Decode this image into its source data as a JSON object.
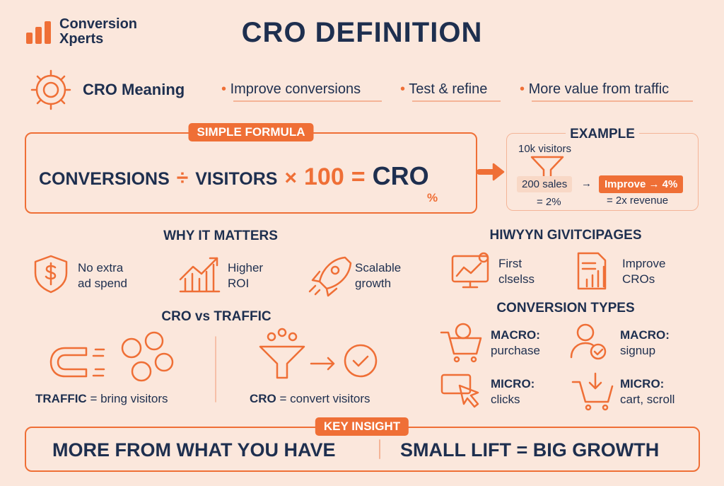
{
  "logo": {
    "line1": "Conversion",
    "line2": "Xperts"
  },
  "title": "CRO DEFINITION",
  "meaning": {
    "label": "CRO Meaning",
    "bullets": [
      "Improve conversions",
      "Test & refine",
      "More value from traffic"
    ]
  },
  "formula": {
    "badge": "SIMPLE FORMULA",
    "parts": [
      "CONVERSIONS",
      "÷",
      "VISITORS",
      "×",
      "100",
      "=",
      "CRO"
    ],
    "unit": "%"
  },
  "example": {
    "title": "EXAMPLE",
    "visitors": "10k visitors",
    "sales": "200 sales",
    "arrow": "→",
    "rate": "= 2%",
    "improve": "Improve → 4%",
    "result": "= 2x revenue"
  },
  "why": {
    "title": "WHY IT MATTERS",
    "items": [
      [
        "No extra",
        "ad spend"
      ],
      [
        "Higher",
        "ROI"
      ],
      [
        "Scalable",
        "growth"
      ]
    ]
  },
  "garbled": {
    "title": "HIWYYN GIVITCIPAGES",
    "items": [
      [
        "First",
        "clselss"
      ],
      [
        "Improve",
        "CROs"
      ]
    ]
  },
  "versus": {
    "title": "CRO vs TRAFFIC",
    "traffic": {
      "term": "TRAFFIC",
      "text": "= bring visitors"
    },
    "cro": {
      "term": "CRO",
      "text": "= convert visitors"
    }
  },
  "types": {
    "title": "CONVERSION TYPES",
    "items": [
      [
        "MACRO:",
        "purchase"
      ],
      [
        "MACRO:",
        "signup"
      ],
      [
        "MICRO:",
        "clicks"
      ],
      [
        "MICRO:",
        "cart, scroll"
      ]
    ]
  },
  "insight": {
    "badge": "KEY INSIGHT",
    "left": "MORE FROM WHAT YOU HAVE",
    "right": "SMALL LIFT = BIG GROWTH"
  }
}
